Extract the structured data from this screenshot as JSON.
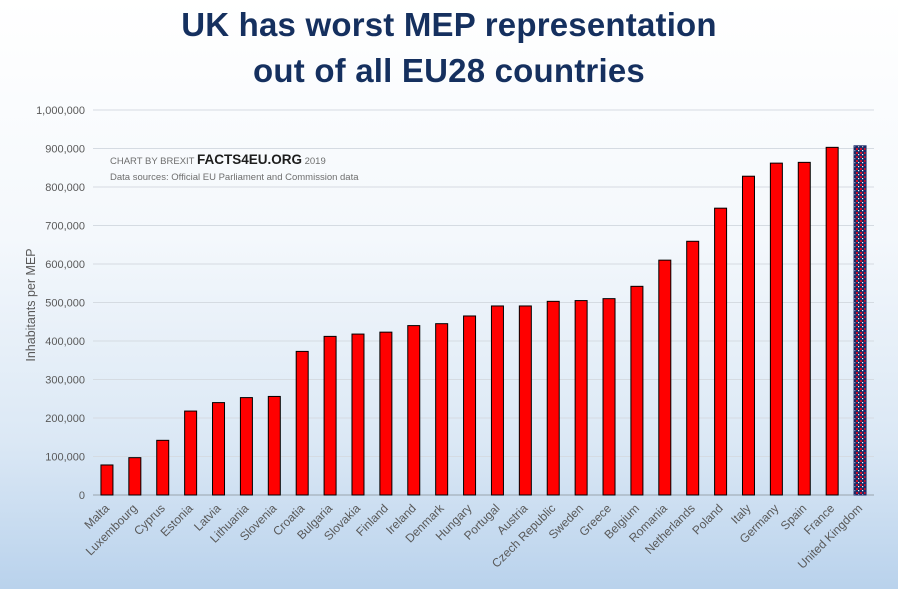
{
  "title_lines": [
    "UK has worst MEP representation",
    "out of all EU28 countries"
  ],
  "credit": {
    "prefix": "CHART BY BREXIT",
    "brand": "FACTS4EU.ORG",
    "year": "2019",
    "sources": "Data sources: Official EU Parliament and Commission data"
  },
  "chart_data": {
    "type": "bar",
    "title": "UK has worst MEP representation out of all EU28 countries",
    "xlabel": "",
    "ylabel": "Inhabitants per MEP",
    "ylim": [
      0,
      1000000
    ],
    "yticks": [
      0,
      100000,
      200000,
      300000,
      400000,
      500000,
      600000,
      700000,
      800000,
      900000,
      1000000
    ],
    "ytick_labels": [
      "0",
      "100,000",
      "200,000",
      "300,000",
      "400,000",
      "500,000",
      "600,000",
      "700,000",
      "800,000",
      "900,000",
      "1,000,000"
    ],
    "grid": true,
    "legend": "none",
    "bar_color": "#ff0000",
    "highlight_color": "#1b2a66",
    "highlight_category": "United Kingdom",
    "categories": [
      "Malta",
      "Luxembourg",
      "Cyprus",
      "Estonia",
      "Latvia",
      "Lithuania",
      "Slovenia",
      "Croatia",
      "Bulgaria",
      "Slovakia",
      "Finland",
      "Ireland",
      "Denmark",
      "Hungary",
      "Portugal",
      "Austria",
      "Czech Republic",
      "Sweden",
      "Greece",
      "Belgium",
      "Romania",
      "Netherlands",
      "Poland",
      "Italy",
      "Germany",
      "Spain",
      "France",
      "United Kingdom"
    ],
    "values": [
      78000,
      97000,
      142000,
      218000,
      240000,
      253000,
      256000,
      373000,
      412000,
      418000,
      423000,
      440000,
      445000,
      465000,
      491000,
      491000,
      503000,
      505000,
      510000,
      542000,
      610000,
      659000,
      745000,
      828000,
      862000,
      864000,
      903000,
      907000
    ]
  }
}
